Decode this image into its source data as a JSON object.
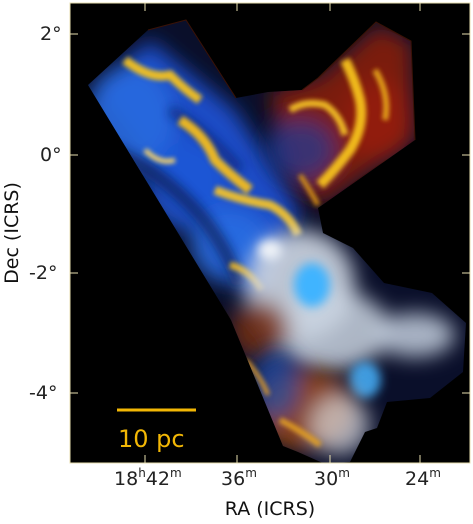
{
  "chart_data": {
    "type": "sky-image",
    "title": "",
    "xlabel": "RA (ICRS)",
    "ylabel": "Dec (ICRS)",
    "x_ticks": [
      {
        "h": "18",
        "m": "42"
      },
      {
        "m": "36"
      },
      {
        "m": "30"
      },
      {
        "m": "24"
      }
    ],
    "y_ticks": [
      "2°",
      "0°",
      "-2°",
      "-4°"
    ],
    "scale_bar": {
      "label": "10 pc",
      "color": "#f2b705"
    },
    "colors": {
      "background": "#000000",
      "frame": "#e8dfb0",
      "emission_blue": "#1f5fd6",
      "emission_cyan": "#3fb4ff",
      "emission_white": "#dfe6ef",
      "emission_gold": "#f6c21c",
      "emission_red": "#8a1c08"
    }
  }
}
